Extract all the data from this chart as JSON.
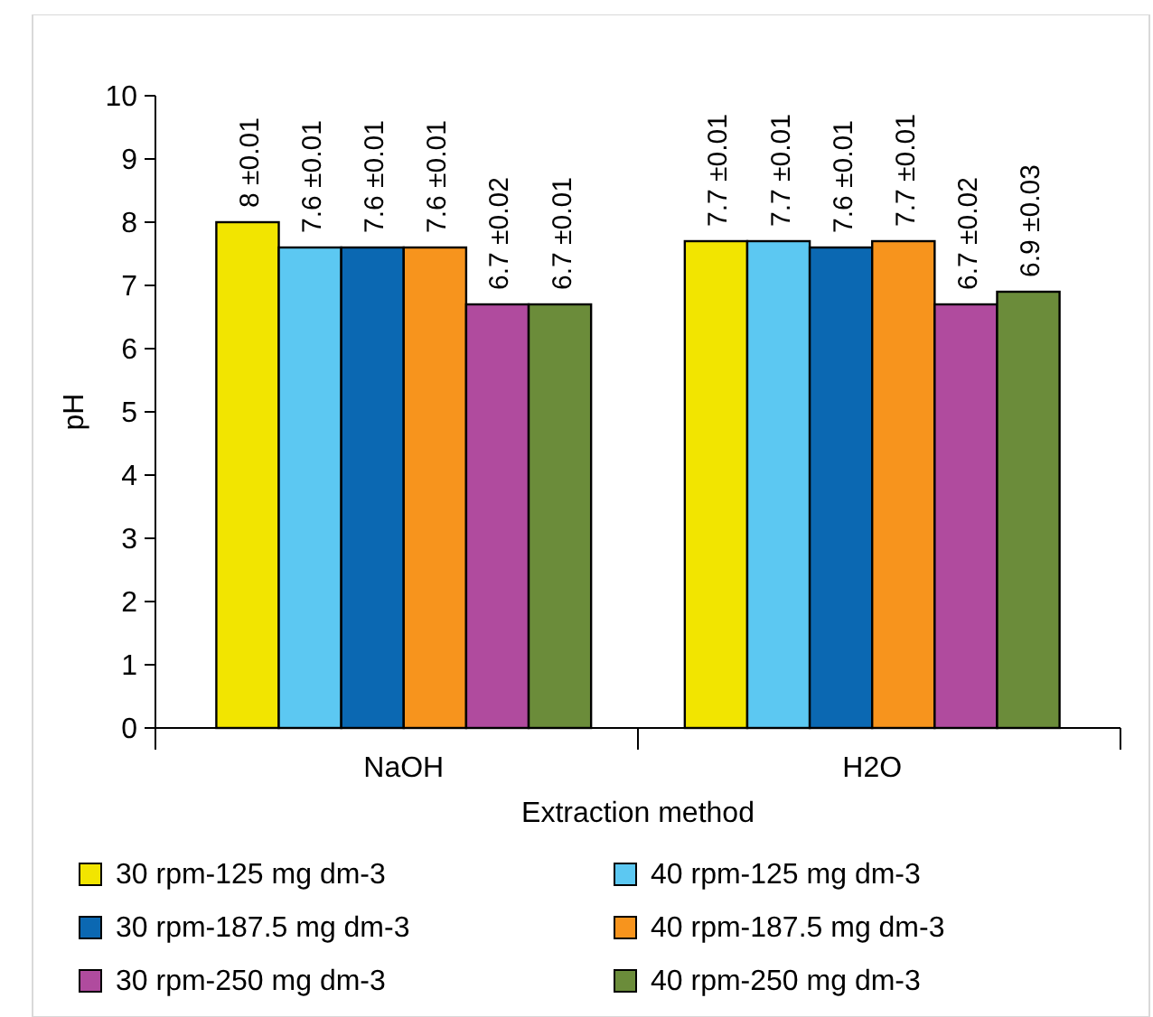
{
  "chart_data": {
    "type": "bar",
    "xlabel": "Extraction method",
    "ylabel": "pH",
    "categories": [
      "NaOH",
      "H2O"
    ],
    "ylim": [
      0,
      10
    ],
    "yticks": [
      0,
      1,
      2,
      3,
      4,
      5,
      6,
      7,
      8,
      9,
      10
    ],
    "grid": false,
    "legend": "bottom",
    "series": [
      {
        "name": "30 rpm-125 mg dm-3",
        "color": "#f2e500",
        "values": [
          8,
          7.7
        ],
        "value_labels": [
          "8 ±0.01",
          "7.7 ±0.01"
        ]
      },
      {
        "name": "40 rpm-125 mg dm-3",
        "color": "#5cc8f2",
        "values": [
          7.6,
          7.7
        ],
        "value_labels": [
          "7.6 ±0.01",
          "7.7 ±0.01"
        ]
      },
      {
        "name": "30 rpm-187.5 mg dm-3",
        "color": "#0b68b2",
        "values": [
          7.6,
          7.6
        ],
        "value_labels": [
          "7.6 ±0.01",
          "7.6 ±0.01"
        ]
      },
      {
        "name": "40 rpm-187.5 mg dm-3",
        "color": "#f7941d",
        "values": [
          7.6,
          7.7
        ],
        "value_labels": [
          "7.6 ±0.01",
          "7.7 ±0.01"
        ]
      },
      {
        "name": "30 rpm-250 mg dm-3",
        "color": "#b04b9e",
        "values": [
          6.7,
          6.7
        ],
        "value_labels": [
          "6.7 ±0.02",
          "6.7 ±0.02"
        ]
      },
      {
        "name": "40 rpm-250 mg dm-3",
        "color": "#6b8c3a",
        "values": [
          6.7,
          6.9
        ],
        "value_labels": [
          "6.7 ±0.01",
          "6.9 ±0.03"
        ]
      }
    ]
  }
}
